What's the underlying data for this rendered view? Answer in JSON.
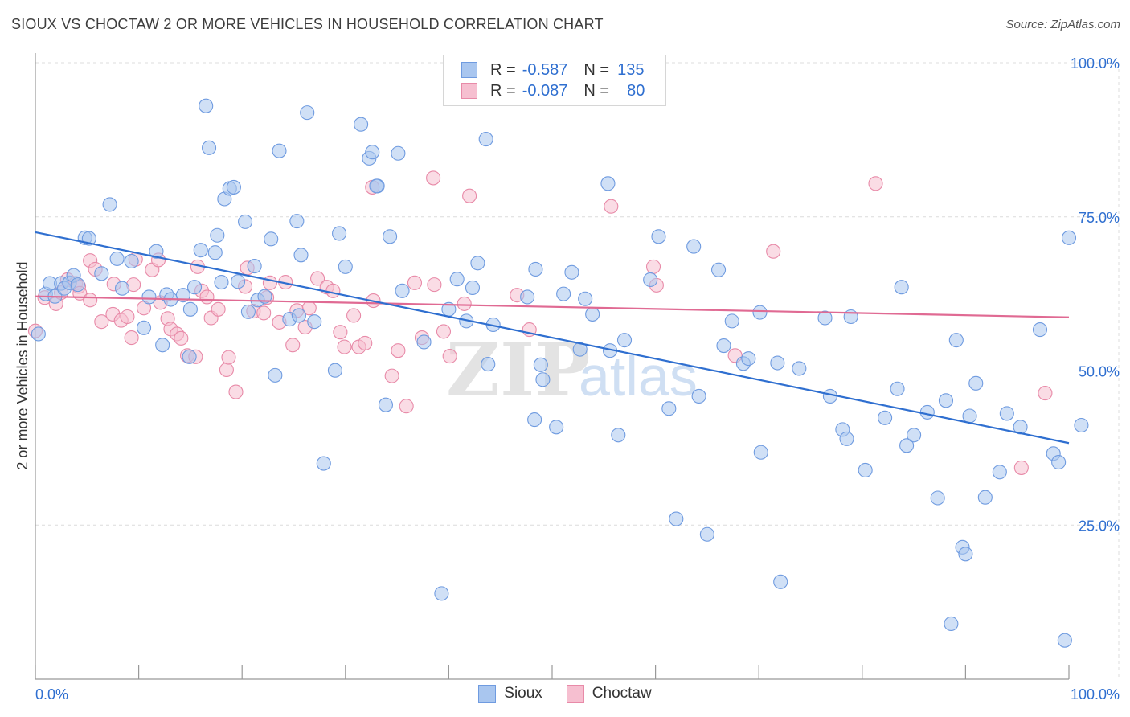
{
  "header": {
    "title": "SIOUX VS CHOCTAW 2 OR MORE VEHICLES IN HOUSEHOLD CORRELATION CHART",
    "source": "Source: ZipAtlas.com"
  },
  "watermark": {
    "zip": "ZIP",
    "atlas": "atlas"
  },
  "legend": {
    "rows": [
      {
        "r_label": "R =",
        "r_value": "-0.587",
        "n_label": "N =",
        "n_value": "135",
        "color": "#a9c6ef",
        "border": "#6f9be0"
      },
      {
        "r_label": "R =",
        "r_value": "-0.087",
        "n_label": "N =",
        "n_value": "80",
        "color": "#f6bfd0",
        "border": "#e88aa8"
      }
    ]
  },
  "bottom_legend": {
    "series": [
      "Sioux",
      "Choctaw"
    ]
  },
  "colors": {
    "sioux_fill": "#a9c6ef",
    "sioux_stroke": "#6f9be0",
    "sioux_line": "#2f6fd0",
    "choctaw_fill": "#f6bfd0",
    "choctaw_stroke": "#e88aa8",
    "choctaw_line": "#e06a93",
    "axis_label": "#2f6fd0",
    "grid": "#dcdcdc"
  },
  "chart_data": {
    "type": "scatter",
    "title": "SIOUX VS CHOCTAW 2 OR MORE VEHICLES IN HOUSEHOLD CORRELATION CHART",
    "xlabel": "",
    "ylabel": "2 or more Vehicles in Household",
    "xlim": [
      0,
      100
    ],
    "ylim": [
      0,
      100
    ],
    "x_tick_labels": [
      "0.0%",
      "100.0%"
    ],
    "y_ticks": [
      25,
      50,
      75,
      100
    ],
    "y_tick_labels": [
      "25.0%",
      "50.0%",
      "75.0%",
      "100.0%"
    ],
    "series": [
      {
        "name": "Sioux",
        "trend": {
          "x": [
            0,
            100
          ],
          "y": [
            72.5,
            38.3
          ]
        },
        "points": [
          [
            0.3,
            56
          ],
          [
            1,
            62.5
          ],
          [
            1.4,
            64.2
          ],
          [
            1.9,
            62.1
          ],
          [
            2.5,
            64.2
          ],
          [
            2.8,
            63.4
          ],
          [
            3.3,
            64.3
          ],
          [
            3.7,
            65.5
          ],
          [
            4.1,
            64
          ],
          [
            4.8,
            71.6
          ],
          [
            5.2,
            71.5
          ],
          [
            6.4,
            65.8
          ],
          [
            7.2,
            77
          ],
          [
            7.9,
            68.2
          ],
          [
            8.4,
            63.4
          ],
          [
            9.3,
            67.8
          ],
          [
            10.5,
            57
          ],
          [
            11,
            62
          ],
          [
            11.7,
            69.4
          ],
          [
            12.3,
            54.2
          ],
          [
            12.7,
            62.4
          ],
          [
            13.1,
            61.6
          ],
          [
            14.3,
            62.3
          ],
          [
            14.9,
            52.3
          ],
          [
            15.4,
            63.6
          ],
          [
            16,
            69.6
          ],
          [
            16.5,
            93
          ],
          [
            16.8,
            86.2
          ],
          [
            17.4,
            69.2
          ],
          [
            17.6,
            72
          ],
          [
            18,
            64.4
          ],
          [
            18.3,
            77.9
          ],
          [
            18.8,
            79.6
          ],
          [
            19.2,
            79.8
          ],
          [
            19.6,
            64.5
          ],
          [
            20.3,
            74.2
          ],
          [
            20.6,
            59.6
          ],
          [
            21.2,
            67
          ],
          [
            21.5,
            61.5
          ],
          [
            22.2,
            62.1
          ],
          [
            22.8,
            71.4
          ],
          [
            23.2,
            49.3
          ],
          [
            23.6,
            85.7
          ],
          [
            24.6,
            58.4
          ],
          [
            25.3,
            74.3
          ],
          [
            25.7,
            68.8
          ],
          [
            26.3,
            91.9
          ],
          [
            27,
            58
          ],
          [
            27.9,
            35
          ],
          [
            29,
            50.1
          ],
          [
            29.4,
            72.3
          ],
          [
            30,
            66.9
          ],
          [
            31.5,
            90
          ],
          [
            32.3,
            84.5
          ],
          [
            32.6,
            85.5
          ],
          [
            33.1,
            80
          ],
          [
            33.9,
            44.5
          ],
          [
            34.3,
            71.8
          ],
          [
            35.1,
            85.3
          ],
          [
            35.5,
            63
          ],
          [
            37.6,
            54.7
          ],
          [
            40.8,
            64.9
          ],
          [
            41.7,
            58.1
          ],
          [
            42.3,
            63.5
          ],
          [
            42.8,
            67.5
          ],
          [
            43.6,
            87.6
          ],
          [
            43.8,
            51.1
          ],
          [
            44.3,
            57.5
          ],
          [
            47.6,
            62
          ],
          [
            48.3,
            42.1
          ],
          [
            48.4,
            66.5
          ],
          [
            48.9,
            51
          ],
          [
            49.1,
            48.6
          ],
          [
            50.4,
            40.9
          ],
          [
            51.1,
            62.5
          ],
          [
            51.9,
            66
          ],
          [
            52.7,
            53.5
          ],
          [
            53.2,
            61.7
          ],
          [
            53.9,
            59.2
          ],
          [
            55.4,
            80.4
          ],
          [
            55.6,
            53.3
          ],
          [
            56.4,
            39.6
          ],
          [
            59.5,
            64.8
          ],
          [
            60.3,
            71.8
          ],
          [
            61.3,
            43.9
          ],
          [
            62,
            26
          ],
          [
            63.7,
            70.2
          ],
          [
            64.2,
            45.9
          ],
          [
            65,
            23.5
          ],
          [
            66.1,
            66.4
          ],
          [
            66.6,
            54.1
          ],
          [
            67.4,
            58.1
          ],
          [
            68.5,
            51.2
          ],
          [
            70.2,
            36.8
          ],
          [
            70.1,
            59.5
          ],
          [
            71.8,
            51.3
          ],
          [
            72.1,
            15.8
          ],
          [
            73.9,
            50.4
          ],
          [
            76.4,
            58.6
          ],
          [
            76.9,
            45.9
          ],
          [
            78.1,
            40.5
          ],
          [
            78.5,
            39
          ],
          [
            78.9,
            58.8
          ],
          [
            80.3,
            33.9
          ],
          [
            82.2,
            42.4
          ],
          [
            83.4,
            47.1
          ],
          [
            83.8,
            63.6
          ],
          [
            84.3,
            37.9
          ],
          [
            85,
            39.6
          ],
          [
            86.3,
            43.3
          ],
          [
            87.3,
            29.4
          ],
          [
            88.1,
            45.2
          ],
          [
            88.6,
            9
          ],
          [
            89.1,
            55
          ],
          [
            89.7,
            21.4
          ],
          [
            90,
            20.3
          ],
          [
            90.4,
            42.7
          ],
          [
            91.9,
            29.5
          ],
          [
            93.3,
            33.6
          ],
          [
            94,
            43.1
          ],
          [
            95.3,
            40.9
          ],
          [
            97.2,
            56.7
          ],
          [
            98.5,
            36.6
          ],
          [
            99,
            35.2
          ],
          [
            99.6,
            6.3
          ],
          [
            100,
            71.6
          ],
          [
            101.2,
            41.2
          ],
          [
            39.3,
            13.9
          ],
          [
            25.5,
            59
          ],
          [
            33,
            80
          ],
          [
            40,
            60
          ],
          [
            57,
            55
          ],
          [
            69,
            52
          ],
          [
            91,
            48
          ],
          [
            15,
            60
          ]
        ]
      },
      {
        "name": "Choctaw",
        "trend": {
          "x": [
            0,
            100
          ],
          "y": [
            62.1,
            58.7
          ]
        },
        "points": [
          [
            0,
            56.5
          ],
          [
            0.9,
            61.9
          ],
          [
            2,
            60.9
          ],
          [
            2.5,
            62.7
          ],
          [
            3.1,
            64.8
          ],
          [
            3.9,
            64.2
          ],
          [
            4.2,
            63.7
          ],
          [
            4.3,
            62.6
          ],
          [
            5.3,
            61.5
          ],
          [
            5.3,
            67.9
          ],
          [
            5.8,
            66.5
          ],
          [
            6.4,
            58
          ],
          [
            7.5,
            59.2
          ],
          [
            7.6,
            64.1
          ],
          [
            8.3,
            58.2
          ],
          [
            8.9,
            58.8
          ],
          [
            9.3,
            55.4
          ],
          [
            9.5,
            64
          ],
          [
            9.7,
            68.1
          ],
          [
            10.5,
            60.2
          ],
          [
            11.3,
            66.4
          ],
          [
            11.9,
            68
          ],
          [
            12.1,
            61.1
          ],
          [
            12.8,
            58.5
          ],
          [
            13.1,
            56.8
          ],
          [
            13.7,
            56
          ],
          [
            14.1,
            55.3
          ],
          [
            14.7,
            52.5
          ],
          [
            15.5,
            52.3
          ],
          [
            15.7,
            66.9
          ],
          [
            16.1,
            63
          ],
          [
            16.6,
            62
          ],
          [
            17,
            58.6
          ],
          [
            17.7,
            60
          ],
          [
            18.5,
            50.2
          ],
          [
            18.7,
            52.2
          ],
          [
            19.4,
            46.6
          ],
          [
            20.3,
            63.7
          ],
          [
            20.5,
            66.7
          ],
          [
            21.1,
            59.7
          ],
          [
            22.1,
            59.4
          ],
          [
            22.4,
            61.9
          ],
          [
            22.7,
            64.3
          ],
          [
            23.6,
            57.9
          ],
          [
            24.2,
            64.4
          ],
          [
            24.9,
            54.2
          ],
          [
            25.3,
            59.8
          ],
          [
            26.1,
            57.1
          ],
          [
            26.5,
            60.2
          ],
          [
            27.3,
            65
          ],
          [
            28.2,
            63.6
          ],
          [
            28.8,
            63
          ],
          [
            29.5,
            56.3
          ],
          [
            29.9,
            53.9
          ],
          [
            30.8,
            59
          ],
          [
            31.3,
            53.9
          ],
          [
            31.9,
            54.5
          ],
          [
            32.6,
            79.8
          ],
          [
            32.7,
            61.4
          ],
          [
            34.5,
            49.2
          ],
          [
            35.1,
            53.3
          ],
          [
            35.9,
            44.3
          ],
          [
            36.7,
            64.3
          ],
          [
            37.4,
            55.4
          ],
          [
            38.5,
            81.3
          ],
          [
            38.6,
            64
          ],
          [
            39.5,
            56.4
          ],
          [
            40.1,
            52.4
          ],
          [
            41.5,
            60.9
          ],
          [
            42,
            78.4
          ],
          [
            46.6,
            62.3
          ],
          [
            47.8,
            56.7
          ],
          [
            55.7,
            76.7
          ],
          [
            59.8,
            66.9
          ],
          [
            60.1,
            63.9
          ],
          [
            67.7,
            52.5
          ],
          [
            71.4,
            69.4
          ],
          [
            81.3,
            80.4
          ],
          [
            95.4,
            34.3
          ],
          [
            97.7,
            46.4
          ]
        ]
      }
    ]
  }
}
